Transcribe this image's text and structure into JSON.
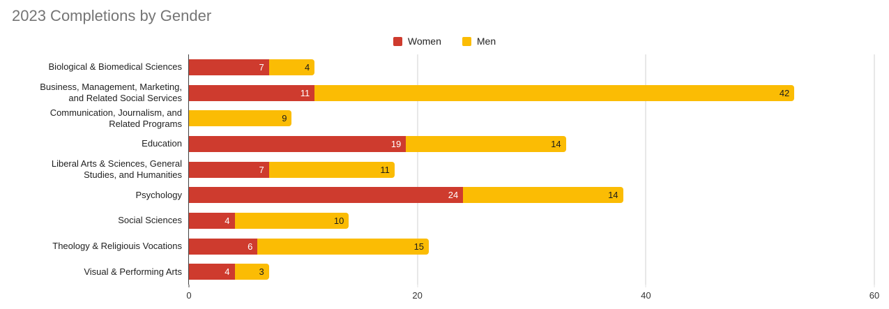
{
  "title": "2023 Completions by Gender",
  "colors": {
    "women": "#CE3B2E",
    "men": "#FBBC04",
    "title_text": "#757575",
    "axis_line": "#424242",
    "gridline": "#e8e8e8",
    "value_label_on_women": "#ffffff",
    "value_label_on_men": "#1b1b1b"
  },
  "legend": [
    {
      "label": "Women",
      "color": "#CE3B2E"
    },
    {
      "label": "Men",
      "color": "#FBBC04"
    }
  ],
  "chart_data": {
    "type": "bar",
    "orientation": "horizontal",
    "stacked": true,
    "title": "2023 Completions by Gender",
    "categories": [
      "Biological & Biomedical Sciences",
      "Business, Management, Marketing, and Related Social Services",
      "Communication, Journalism, and Related Programs",
      "Education",
      "Liberal Arts & Sciences, General Studies, and Humanities",
      "Psychology",
      "Social Sciences",
      "Theology & Religiouis Vocations",
      "Visual & Performing Arts"
    ],
    "series": [
      {
        "name": "Women",
        "values": [
          7,
          11,
          0,
          19,
          7,
          24,
          4,
          6,
          4
        ]
      },
      {
        "name": "Men",
        "values": [
          4,
          42,
          9,
          14,
          11,
          14,
          10,
          15,
          3
        ]
      }
    ],
    "xlabel": "",
    "ylabel": "",
    "xlim": [
      0,
      60
    ],
    "xticks": [
      0,
      20,
      40,
      60
    ],
    "grid": "vertical",
    "legend_position": "top-center",
    "data_labels": "inside-end"
  }
}
